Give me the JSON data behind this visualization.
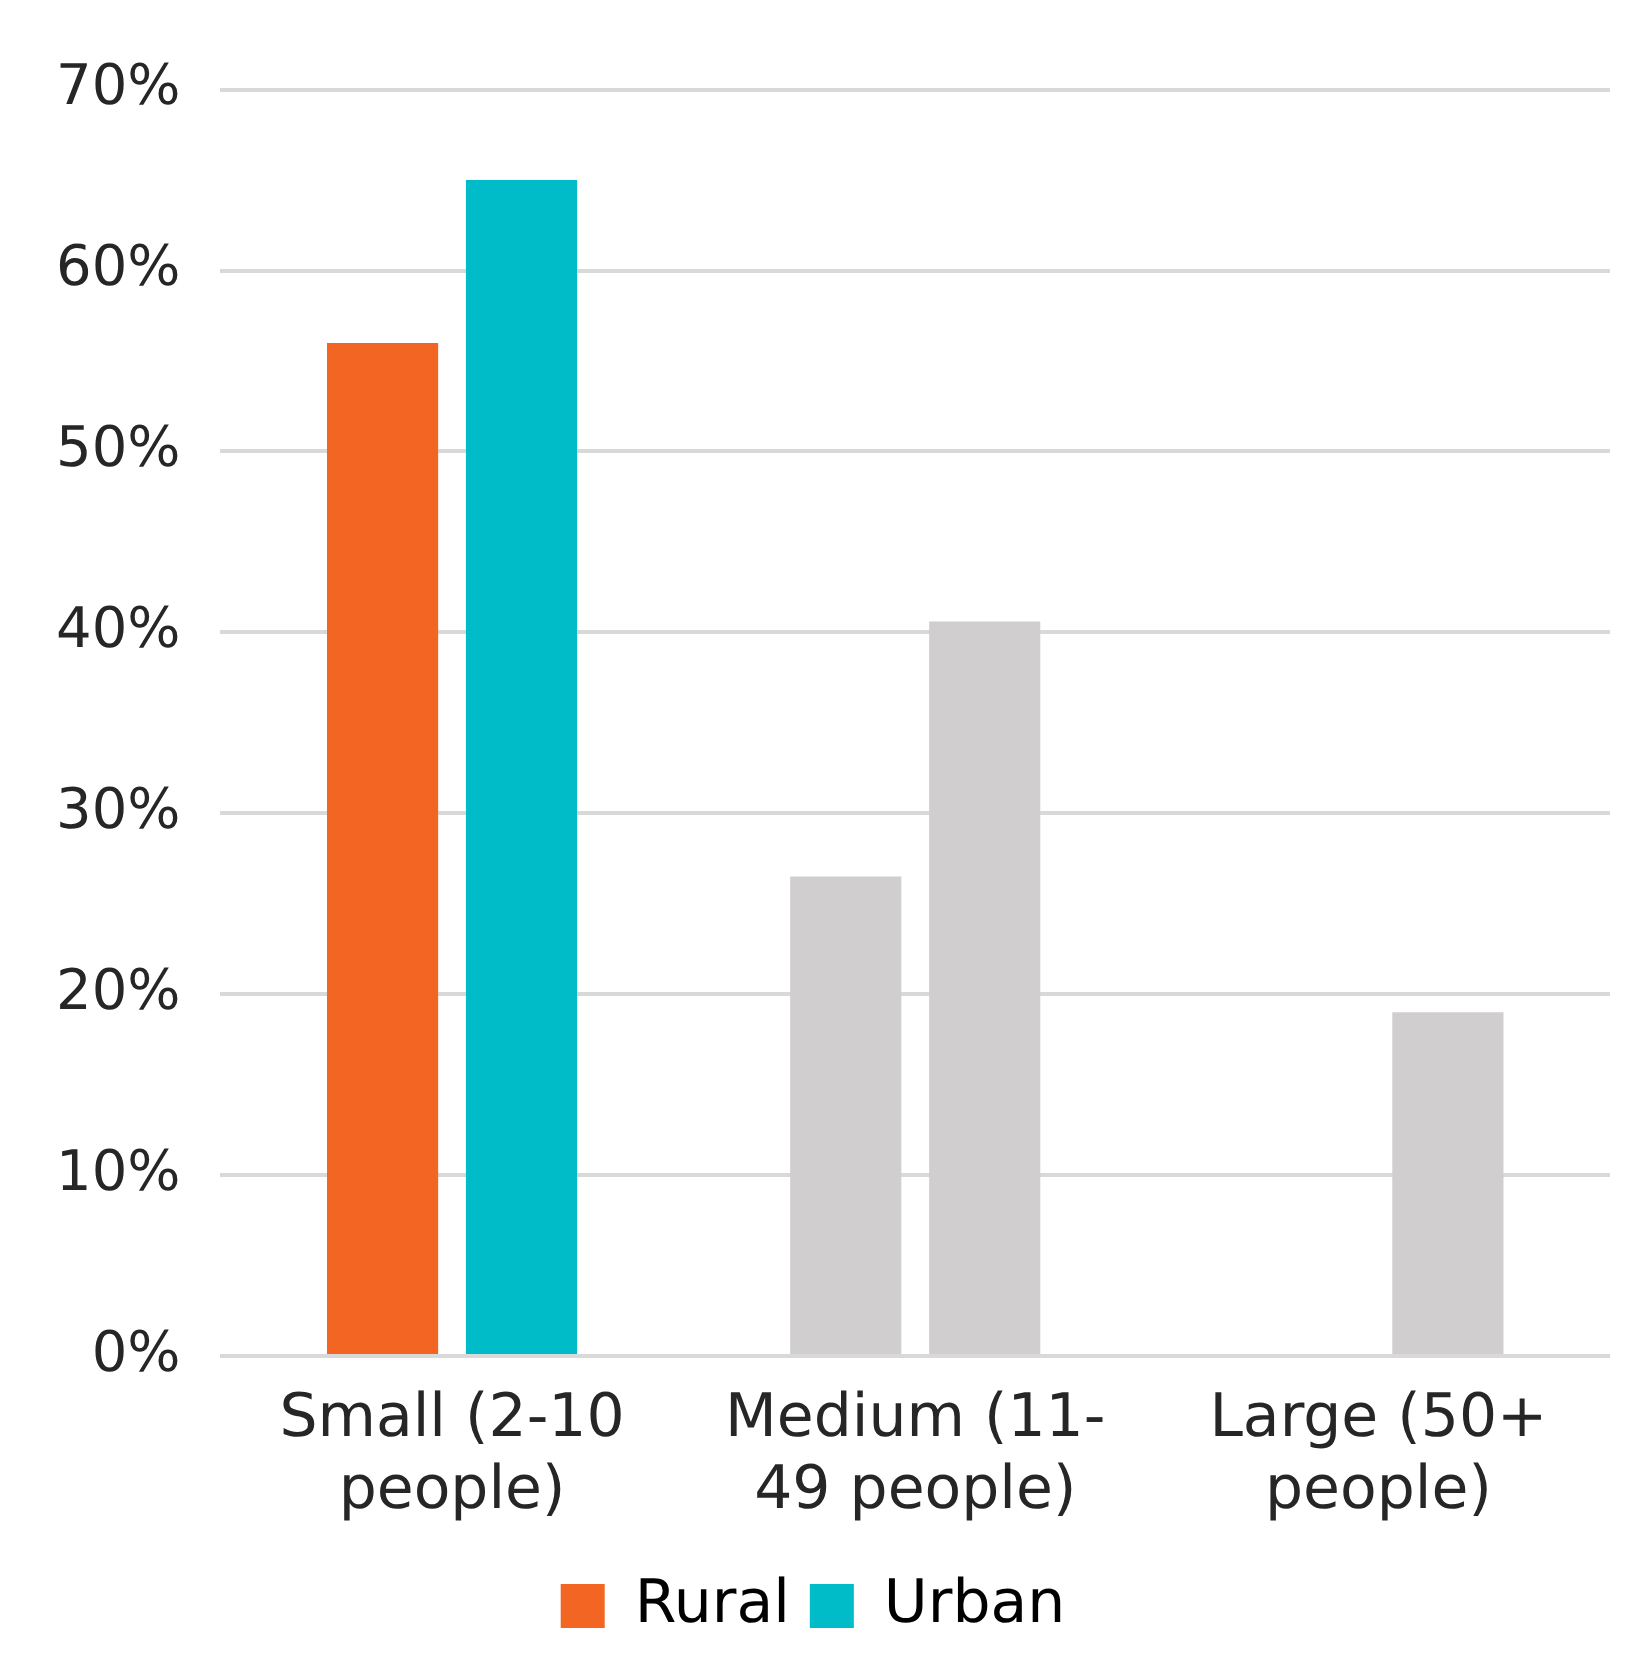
{
  "chart_data": {
    "type": "bar",
    "categories": [
      "Small (2-10 people)",
      "Medium (11-49 people)",
      "Large (50+ people)"
    ],
    "series": [
      {
        "name": "Rural",
        "color": "#f26522",
        "colors": [
          "#f26522",
          "#d0cece",
          "#d0cece"
        ],
        "values": [
          56,
          26.5,
          null
        ]
      },
      {
        "name": "Urban",
        "color": "#00bcc8",
        "colors": [
          "#00bcc8",
          "#d0cece",
          "#d0cece"
        ],
        "values": [
          65,
          40.6,
          19
        ]
      }
    ],
    "ylim": [
      0,
      70
    ],
    "yticks": [
      {
        "value": 0,
        "label": "0%"
      },
      {
        "value": 10,
        "label": "10%"
      },
      {
        "value": 20,
        "label": "20%"
      },
      {
        "value": 30,
        "label": "30%"
      },
      {
        "value": 40,
        "label": "40%"
      },
      {
        "value": 50,
        "label": "50%"
      },
      {
        "value": 60,
        "label": "60%"
      },
      {
        "value": 70,
        "label": "70%"
      }
    ],
    "grid": "y",
    "legend": "bottom"
  }
}
